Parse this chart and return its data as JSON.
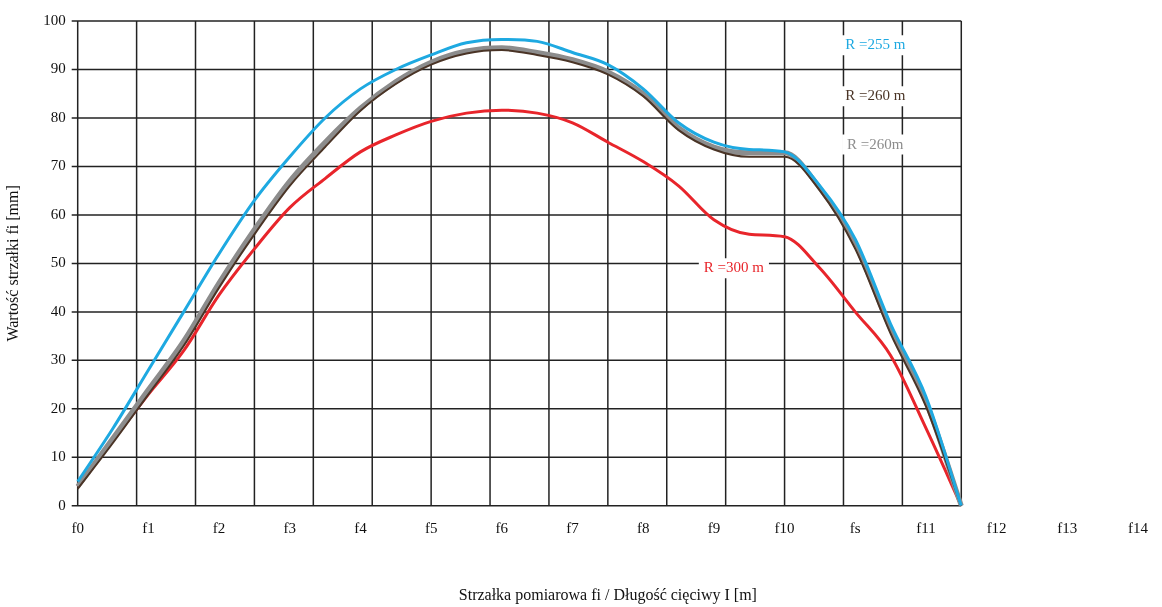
{
  "chart_data": {
    "type": "line",
    "xlabel": "Strzałka pomiarowa fi / Długość cięciwy I [m]",
    "ylabel": "Wartość strzałki fi [mm]",
    "categories": [
      "f0",
      null,
      "f1",
      null,
      "f2",
      null,
      "f3",
      null,
      "f4",
      null,
      "f5",
      null,
      "f6",
      null,
      "f7",
      null,
      "f8",
      null,
      "f9",
      null,
      "f10",
      null,
      "fs",
      null,
      "f11",
      null,
      "f12",
      null,
      "f13",
      null,
      "f14"
    ],
    "ylim": [
      0,
      100
    ],
    "yticks": [
      0,
      10,
      20,
      30,
      40,
      50,
      60,
      70,
      80,
      90,
      100
    ],
    "grid": true,
    "legend": false,
    "marker": "none",
    "line_style": "solid",
    "series": [
      {
        "name": "R =255 m",
        "color": "#1ea9e1",
        "values": [
          5,
          16,
          28,
          40,
          52,
          63,
          72,
          80,
          86,
          90,
          93,
          95.5,
          96.2,
          95.8,
          93.5,
          91,
          86,
          79,
          75,
          73.5,
          73,
          66,
          55,
          37.5,
          22.5,
          0,
          null,
          null,
          null,
          null,
          null
        ]
      },
      {
        "name": "R =260 m",
        "color": "#4a3426",
        "values": [
          3.5,
          13,
          23,
          33,
          45,
          56,
          66,
          74,
          81.5,
          87,
          91,
          93.3,
          94,
          93,
          91.5,
          89,
          84.5,
          77.5,
          73.5,
          72,
          72,
          65,
          53,
          35.5,
          20.5,
          0,
          null,
          null,
          null,
          null,
          null
        ]
      },
      {
        "name": "R =260m",
        "color": "#8c8c8c",
        "values": [
          4,
          14,
          24,
          34,
          46,
          57,
          67,
          75,
          82,
          87.5,
          91.5,
          93.8,
          94.5,
          93.5,
          92,
          89.5,
          85,
          78,
          74,
          72.8,
          72.8,
          65.5,
          54,
          36.5,
          21.5,
          0,
          null,
          null,
          null,
          null,
          null
        ]
      },
      {
        "name": "R =300 m",
        "color": "#e8252b",
        "values": [
          4,
          13.5,
          23,
          32,
          43.5,
          53,
          61.5,
          67.5,
          73,
          76.5,
          79.3,
          81,
          81.6,
          81,
          79,
          75,
          71,
          66,
          59,
          56,
          55.5,
          49,
          40,
          31,
          16,
          0,
          null,
          null,
          null,
          null,
          null
        ]
      }
    ]
  }
}
